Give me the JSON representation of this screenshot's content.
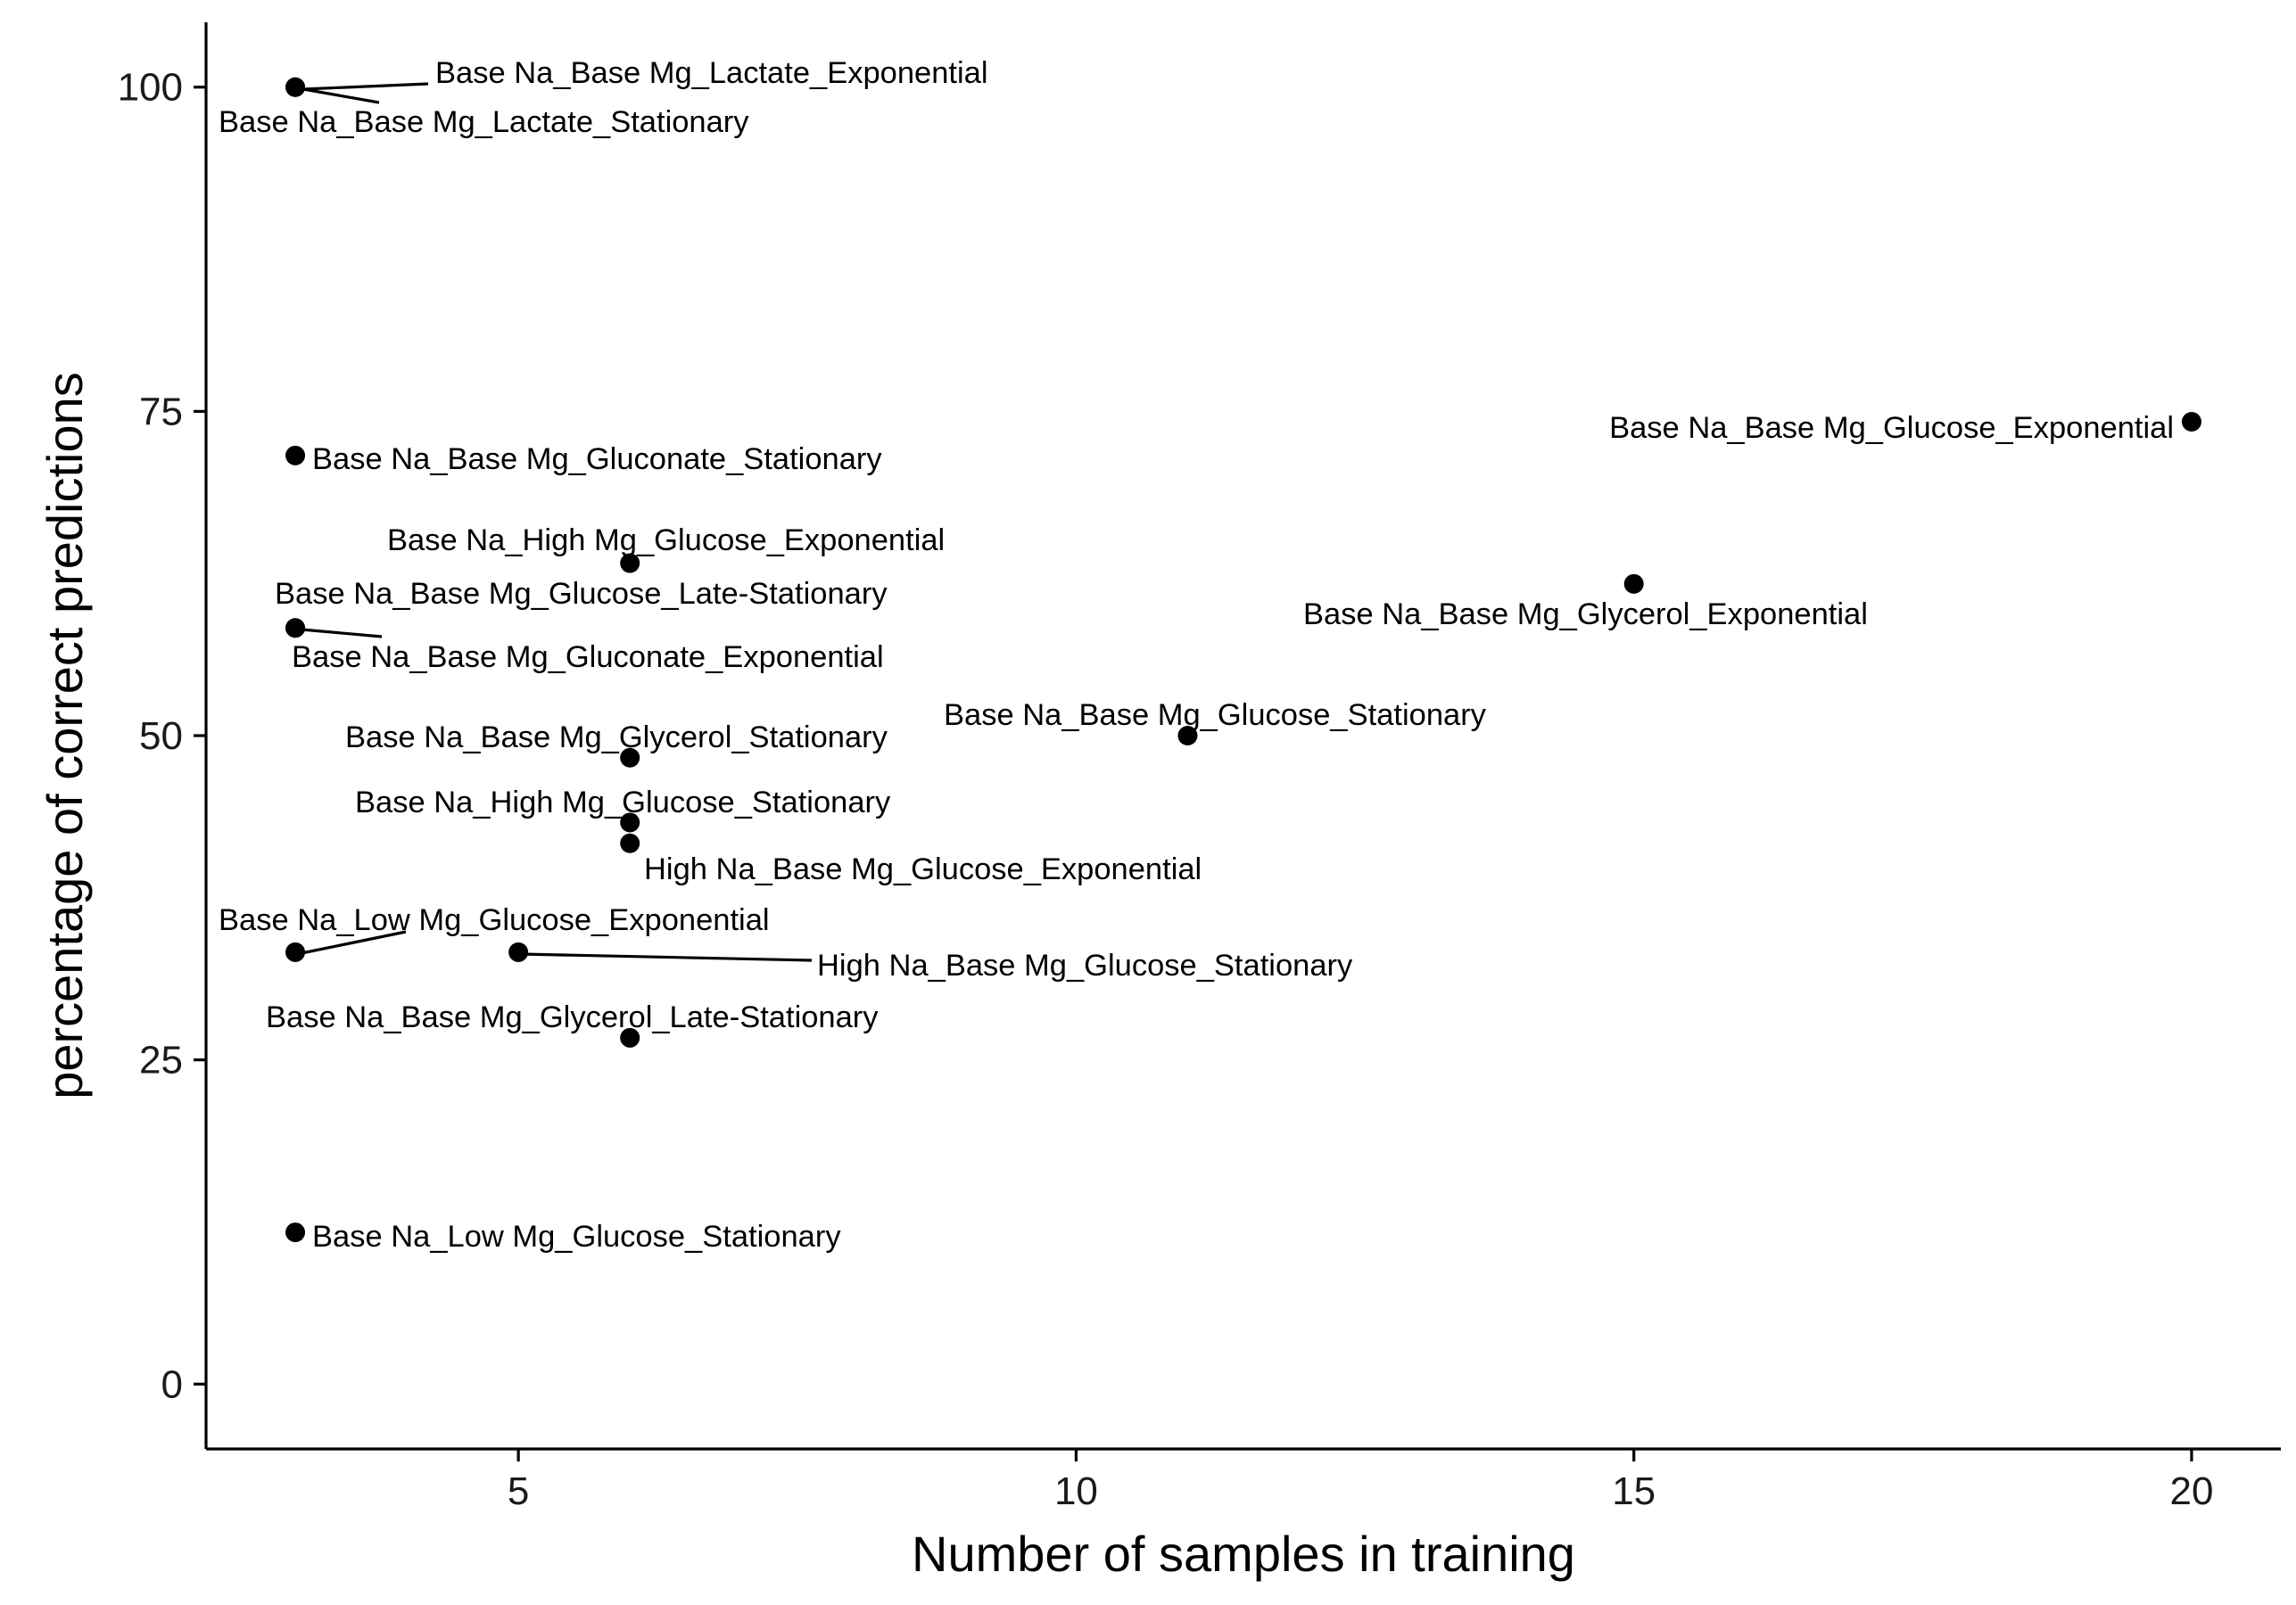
{
  "chart_data": {
    "type": "scatter",
    "xlabel": "Number of samples in training",
    "ylabel": "percentage of correct predictions",
    "xlim": [
      2.2,
      20.8
    ],
    "ylim": [
      -5,
      105
    ],
    "x_ticks": [
      5,
      10,
      15,
      20
    ],
    "y_ticks": [
      0,
      25,
      50,
      75,
      100
    ],
    "grid": false,
    "legend": "none",
    "points": [
      {
        "label": "Base Na_Base Mg_Lactate_Exponential",
        "x": 3,
        "y": 100
      },
      {
        "label": "Base Na_Base Mg_Lactate_Stationary",
        "x": 3,
        "y": 100
      },
      {
        "label": "Base Na_Base Mg_Glucose_Exponential",
        "x": 20,
        "y": 74.2
      },
      {
        "label": "Base Na_Base Mg_Gluconate_Stationary",
        "x": 3,
        "y": 71.6
      },
      {
        "label": "Base Na_High Mg_Glucose_Exponential",
        "x": 6,
        "y": 63.3
      },
      {
        "label": "Base Na_Base Mg_Glycerol_Exponential",
        "x": 15,
        "y": 61.7
      },
      {
        "label": "Base Na_Base Mg_Glucose_Late-Stationary",
        "x": 3,
        "y": 58.3
      },
      {
        "label": "Base Na_Base Mg_Gluconate_Exponential",
        "x": 3,
        "y": 58.3
      },
      {
        "label": "Base Na_Base Mg_Glucose_Stationary",
        "x": 11,
        "y": 50
      },
      {
        "label": "Base Na_Base Mg_Glycerol_Stationary",
        "x": 6,
        "y": 48.3
      },
      {
        "label": "Base Na_High Mg_Glucose_Stationary",
        "x": 6,
        "y": 43.3
      },
      {
        "label": "High Na_Base Mg_Glucose_Exponential",
        "x": 6,
        "y": 41.7
      },
      {
        "label": "Base Na_Low Mg_Glucose_Exponential",
        "x": 3,
        "y": 33.3
      },
      {
        "label": "High Na_Base Mg_Glucose_Stationary",
        "x": 5,
        "y": 33.3
      },
      {
        "label": "Base Na_Base Mg_Glycerol_Late-Stationary",
        "x": 6,
        "y": 26.7
      },
      {
        "label": "Base Na_Low Mg_Glucose_Stationary",
        "x": 3,
        "y": 11.7
      }
    ]
  }
}
